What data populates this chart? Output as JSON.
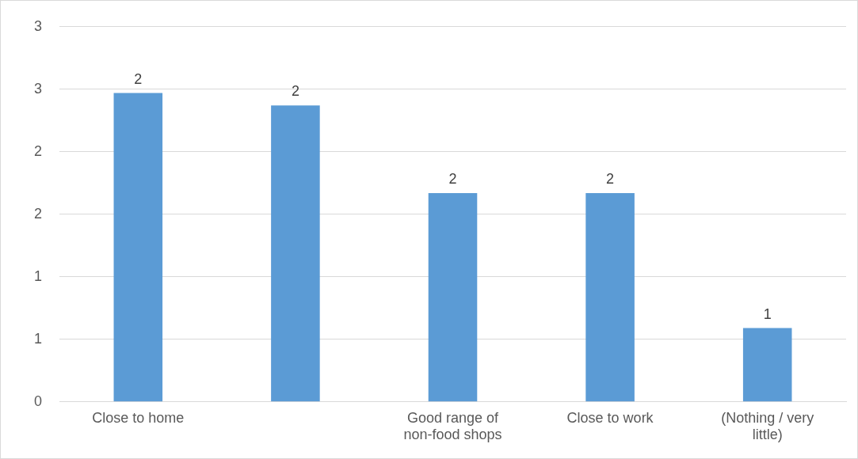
{
  "chart_data": {
    "type": "bar",
    "categories": [
      "Close to home",
      null,
      "Good range of non-food shops",
      "Close to work",
      "(Nothing / very little)"
    ],
    "values": [
      2.47,
      2.37,
      1.67,
      1.67,
      0.59
    ],
    "value_labels": [
      "2",
      "2",
      "2",
      "2",
      "1"
    ],
    "color": "#5b9bd5",
    "ylim": [
      0,
      3
    ],
    "yticks": [
      0,
      {
        "value": 0.5,
        "label": "1"
      },
      1,
      {
        "value": 1.5,
        "label": "2"
      },
      2,
      {
        "value": 2.5,
        "label": "3"
      },
      3
    ],
    "grid": "y",
    "legend": false
  }
}
